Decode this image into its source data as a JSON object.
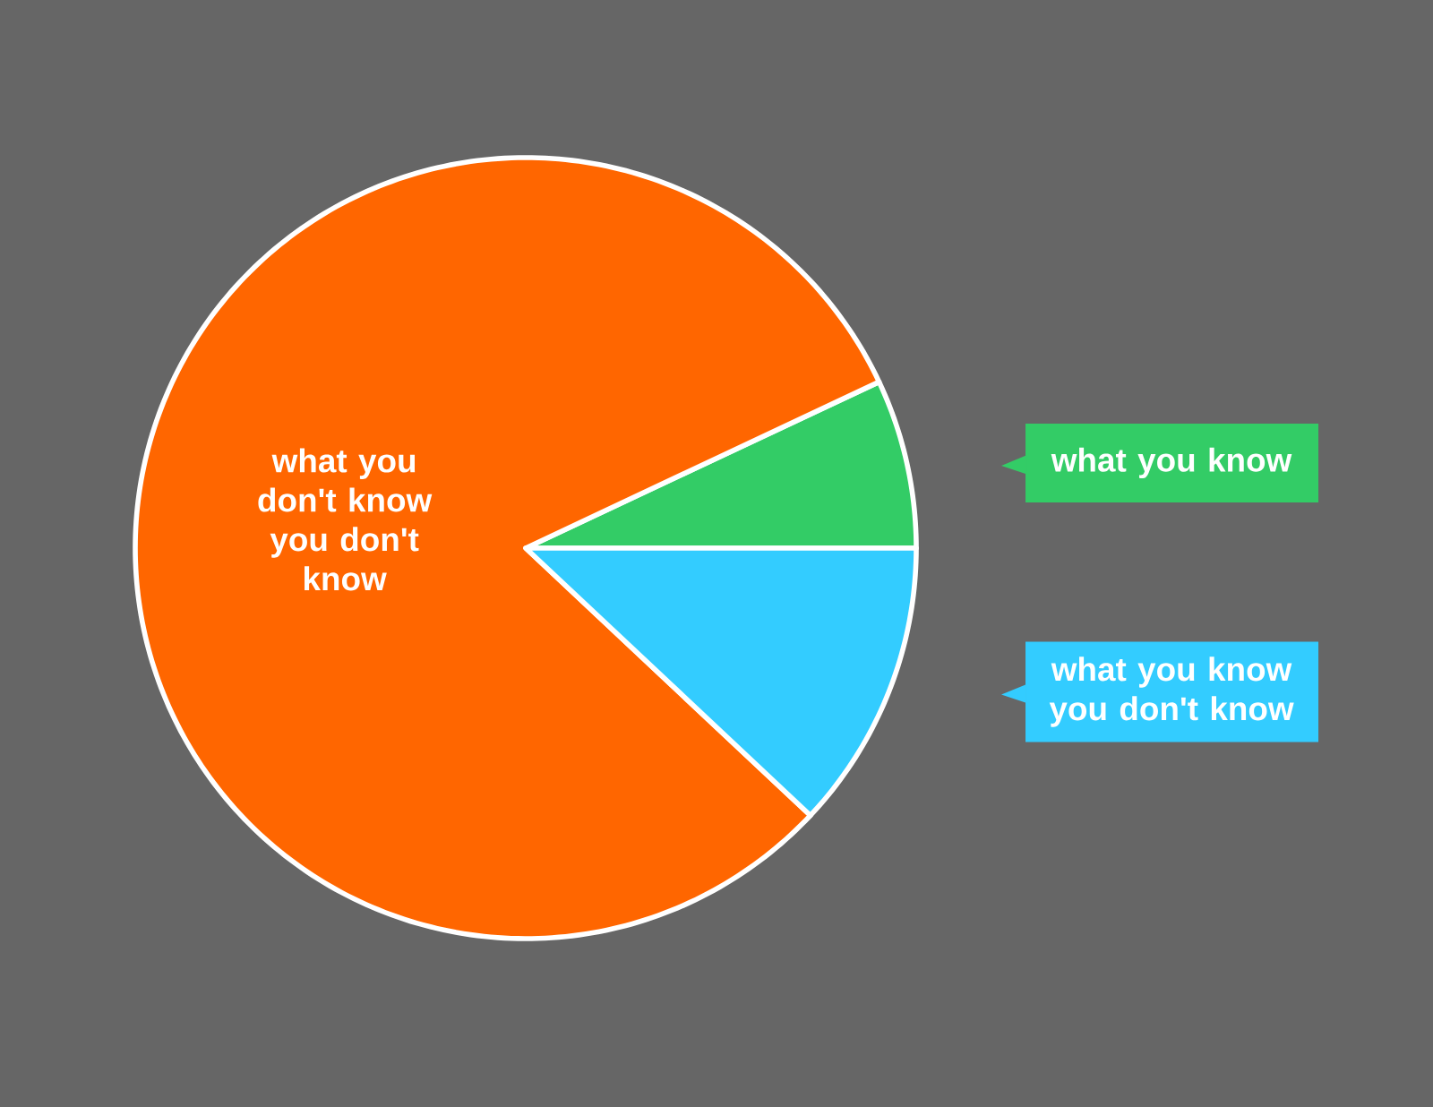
{
  "chart_data": {
    "type": "pie",
    "categories": [
      "what you know",
      "what you don't know you don't know",
      "what you know you don't know"
    ],
    "values": [
      7,
      81,
      12
    ],
    "colors": [
      "#33cc66",
      "#ff6600",
      "#33ccff"
    ],
    "legend": "right"
  }
}
